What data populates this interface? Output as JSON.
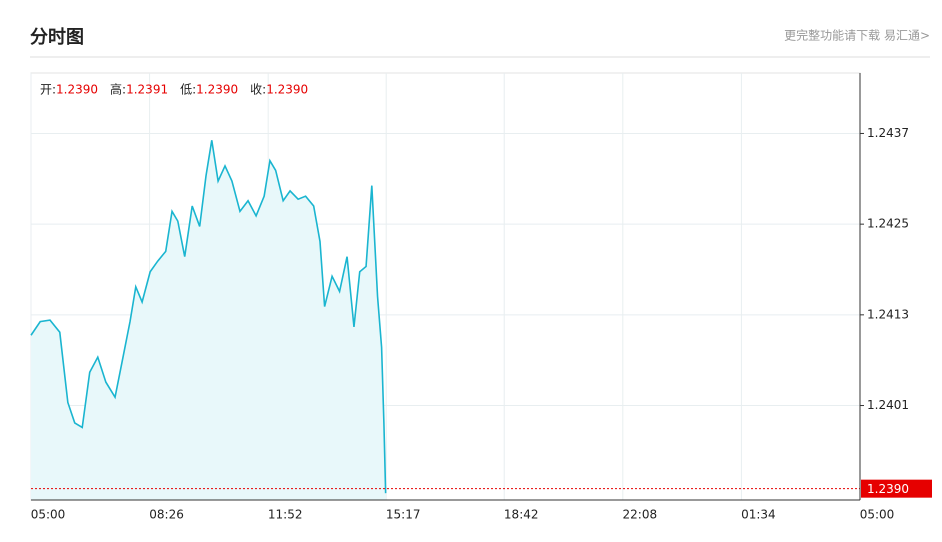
{
  "header": {
    "title": "分时图",
    "link": "更完整功能请下载 易汇通>"
  },
  "chart_data": {
    "type": "line",
    "stats": [
      {
        "label": "开:",
        "value": "1.2390"
      },
      {
        "label": "高:",
        "value": "1.2391"
      },
      {
        "label": "低:",
        "value": "1.2390"
      },
      {
        "label": "收:",
        "value": "1.2390"
      }
    ],
    "x": [
      0,
      16,
      33,
      50,
      64,
      76,
      89,
      102,
      116,
      130,
      146,
      158,
      172,
      182,
      193,
      207,
      220,
      234,
      245,
      255,
      267,
      280,
      293,
      304,
      314,
      325,
      337,
      349,
      363,
      377,
      391,
      405,
      415,
      425,
      438,
      450,
      464,
      477,
      491,
      502,
      510,
      523,
      536,
      549,
      561,
      571,
      582,
      592,
      602,
      609,
      613,
      616
    ],
    "series": [
      {
        "color": "#1ab5d0",
        "fill": "#e8f8fa",
        "values": [
          1.24103,
          1.24121,
          1.24123,
          1.24107,
          1.24014,
          1.23987,
          1.23981,
          1.24054,
          1.24074,
          1.24041,
          1.24021,
          1.24067,
          1.24121,
          1.24167,
          1.24147,
          1.24187,
          1.24201,
          1.24214,
          1.24267,
          1.24254,
          1.24207,
          1.24274,
          1.24247,
          1.24314,
          1.24361,
          1.24307,
          1.24327,
          1.24307,
          1.24267,
          1.24281,
          1.24261,
          1.24287,
          1.24334,
          1.24321,
          1.24281,
          1.24294,
          1.24283,
          1.24287,
          1.24274,
          1.24227,
          1.24141,
          1.24181,
          1.24161,
          1.24207,
          1.24114,
          1.24187,
          1.24194,
          1.24301,
          1.24154,
          1.24087,
          1.23987,
          1.23894
        ]
      }
    ],
    "xlim": [
      0,
      1440
    ],
    "xticks": [
      {
        "value": 0,
        "label": "05:00"
      },
      {
        "value": 206,
        "label": "08:26"
      },
      {
        "value": 412,
        "label": "11:52"
      },
      {
        "value": 617,
        "label": "15:17"
      },
      {
        "value": 822,
        "label": "18:42"
      },
      {
        "value": 1028,
        "label": "22:08"
      },
      {
        "value": 1234,
        "label": "01:34"
      },
      {
        "value": 1440,
        "label": "05:00"
      }
    ],
    "ylim": [
      1.23885,
      1.2445
    ],
    "yticks": [
      1.2437,
      1.2425,
      1.2413,
      1.2401
    ],
    "last": {
      "value": 1.239,
      "label": "1.2390",
      "color": "#e60000"
    },
    "grid": true
  }
}
